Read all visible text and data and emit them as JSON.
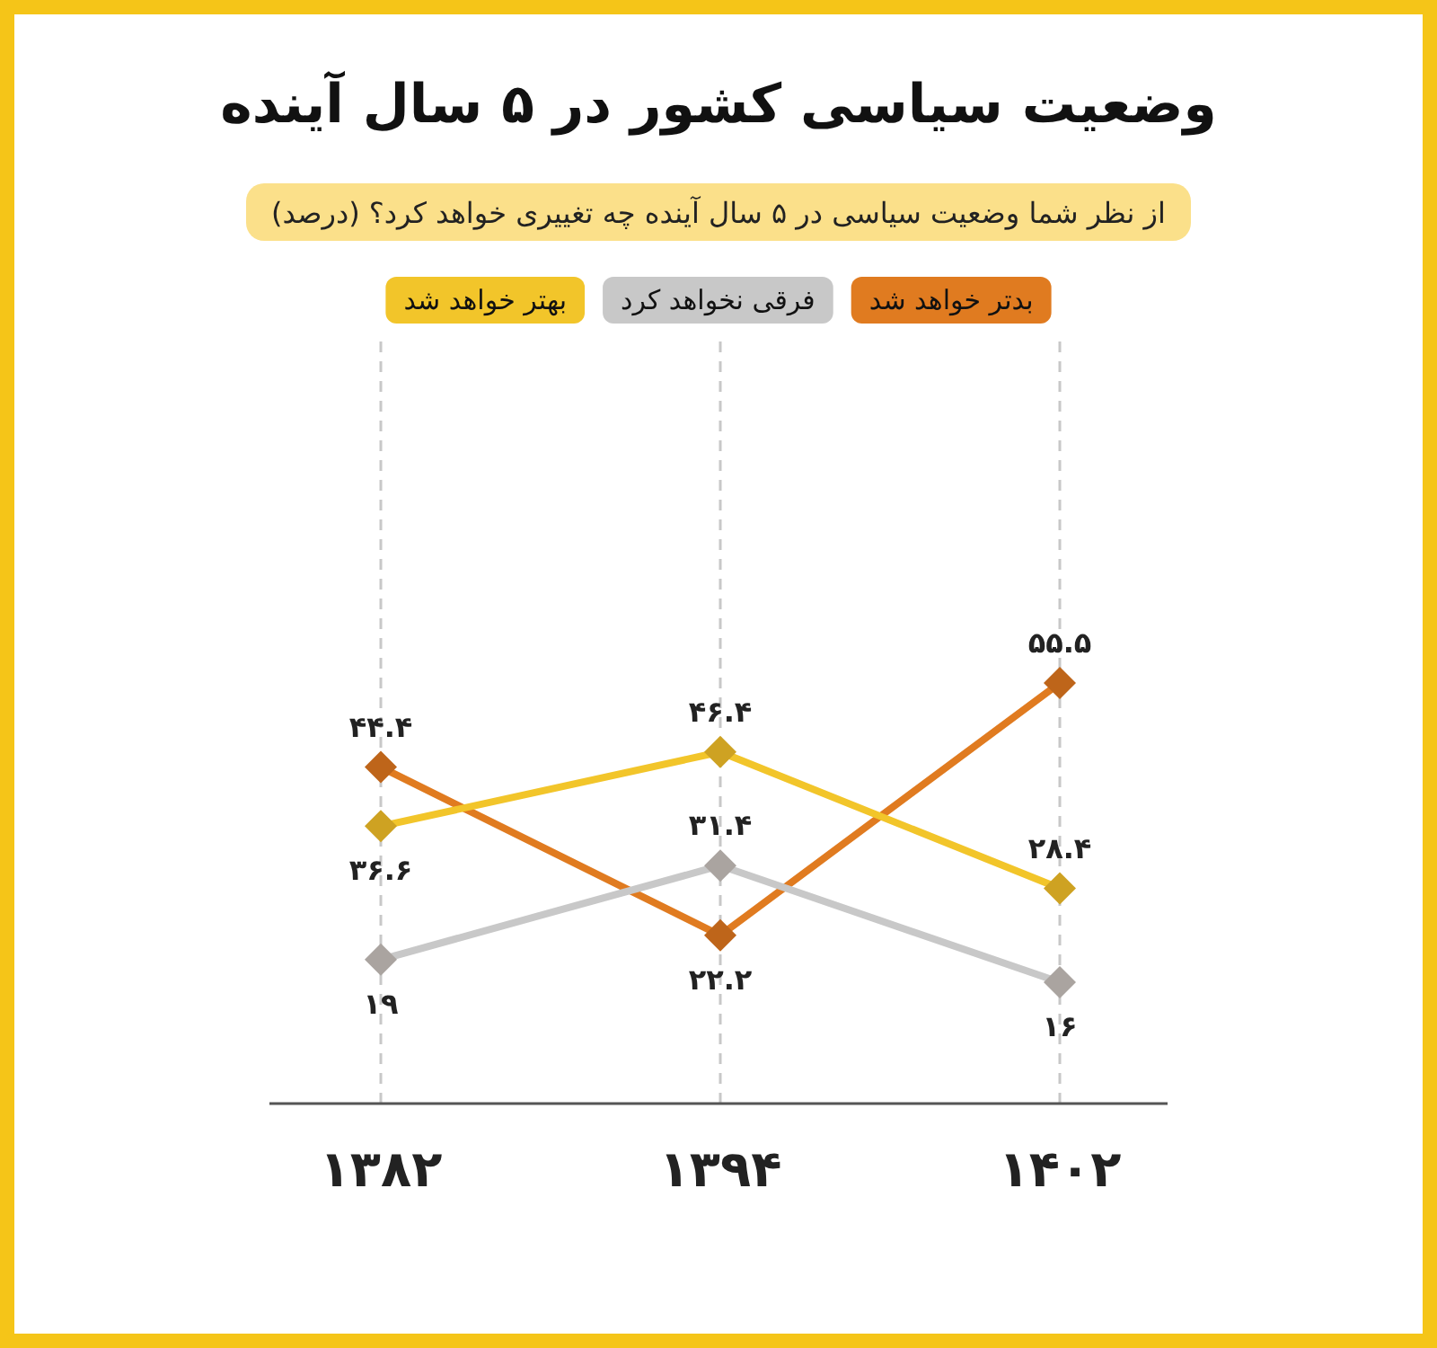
{
  "chart_data": {
    "type": "line",
    "title": "وضعیت سیاسی کشور در ۵ سال آینده",
    "subtitle": "از نظر شما وضعیت سیاسی در ۵ سال آینده چه تغییری خواهد کرد؟ (درصد)",
    "categories": [
      "۱۳۸۲",
      "۱۳۹۴",
      "۱۴۰۲"
    ],
    "series": [
      {
        "name": "بدتر خواهد شد",
        "color": "#e07b20",
        "values": [
          44.4,
          22.2,
          55.5
        ],
        "value_labels": [
          "۴۴.۴",
          "۲۲.۲",
          "۵۵.۵"
        ]
      },
      {
        "name": "فرقی نخواهد کرد",
        "color": "#c8c8c8",
        "values": [
          19,
          31.4,
          16
        ],
        "value_labels": [
          "۱۹",
          "۳۱.۴",
          "۱۶"
        ]
      },
      {
        "name": "بهتر خواهد شد",
        "color": "#f2c52a",
        "values": [
          36.6,
          46.4,
          28.4
        ],
        "value_labels": [
          "۳۶.۶",
          "۴۶.۴",
          "۲۸.۴"
        ]
      }
    ],
    "grid": "x",
    "legend": "top",
    "marker": "diamond",
    "line_style": "solid"
  }
}
